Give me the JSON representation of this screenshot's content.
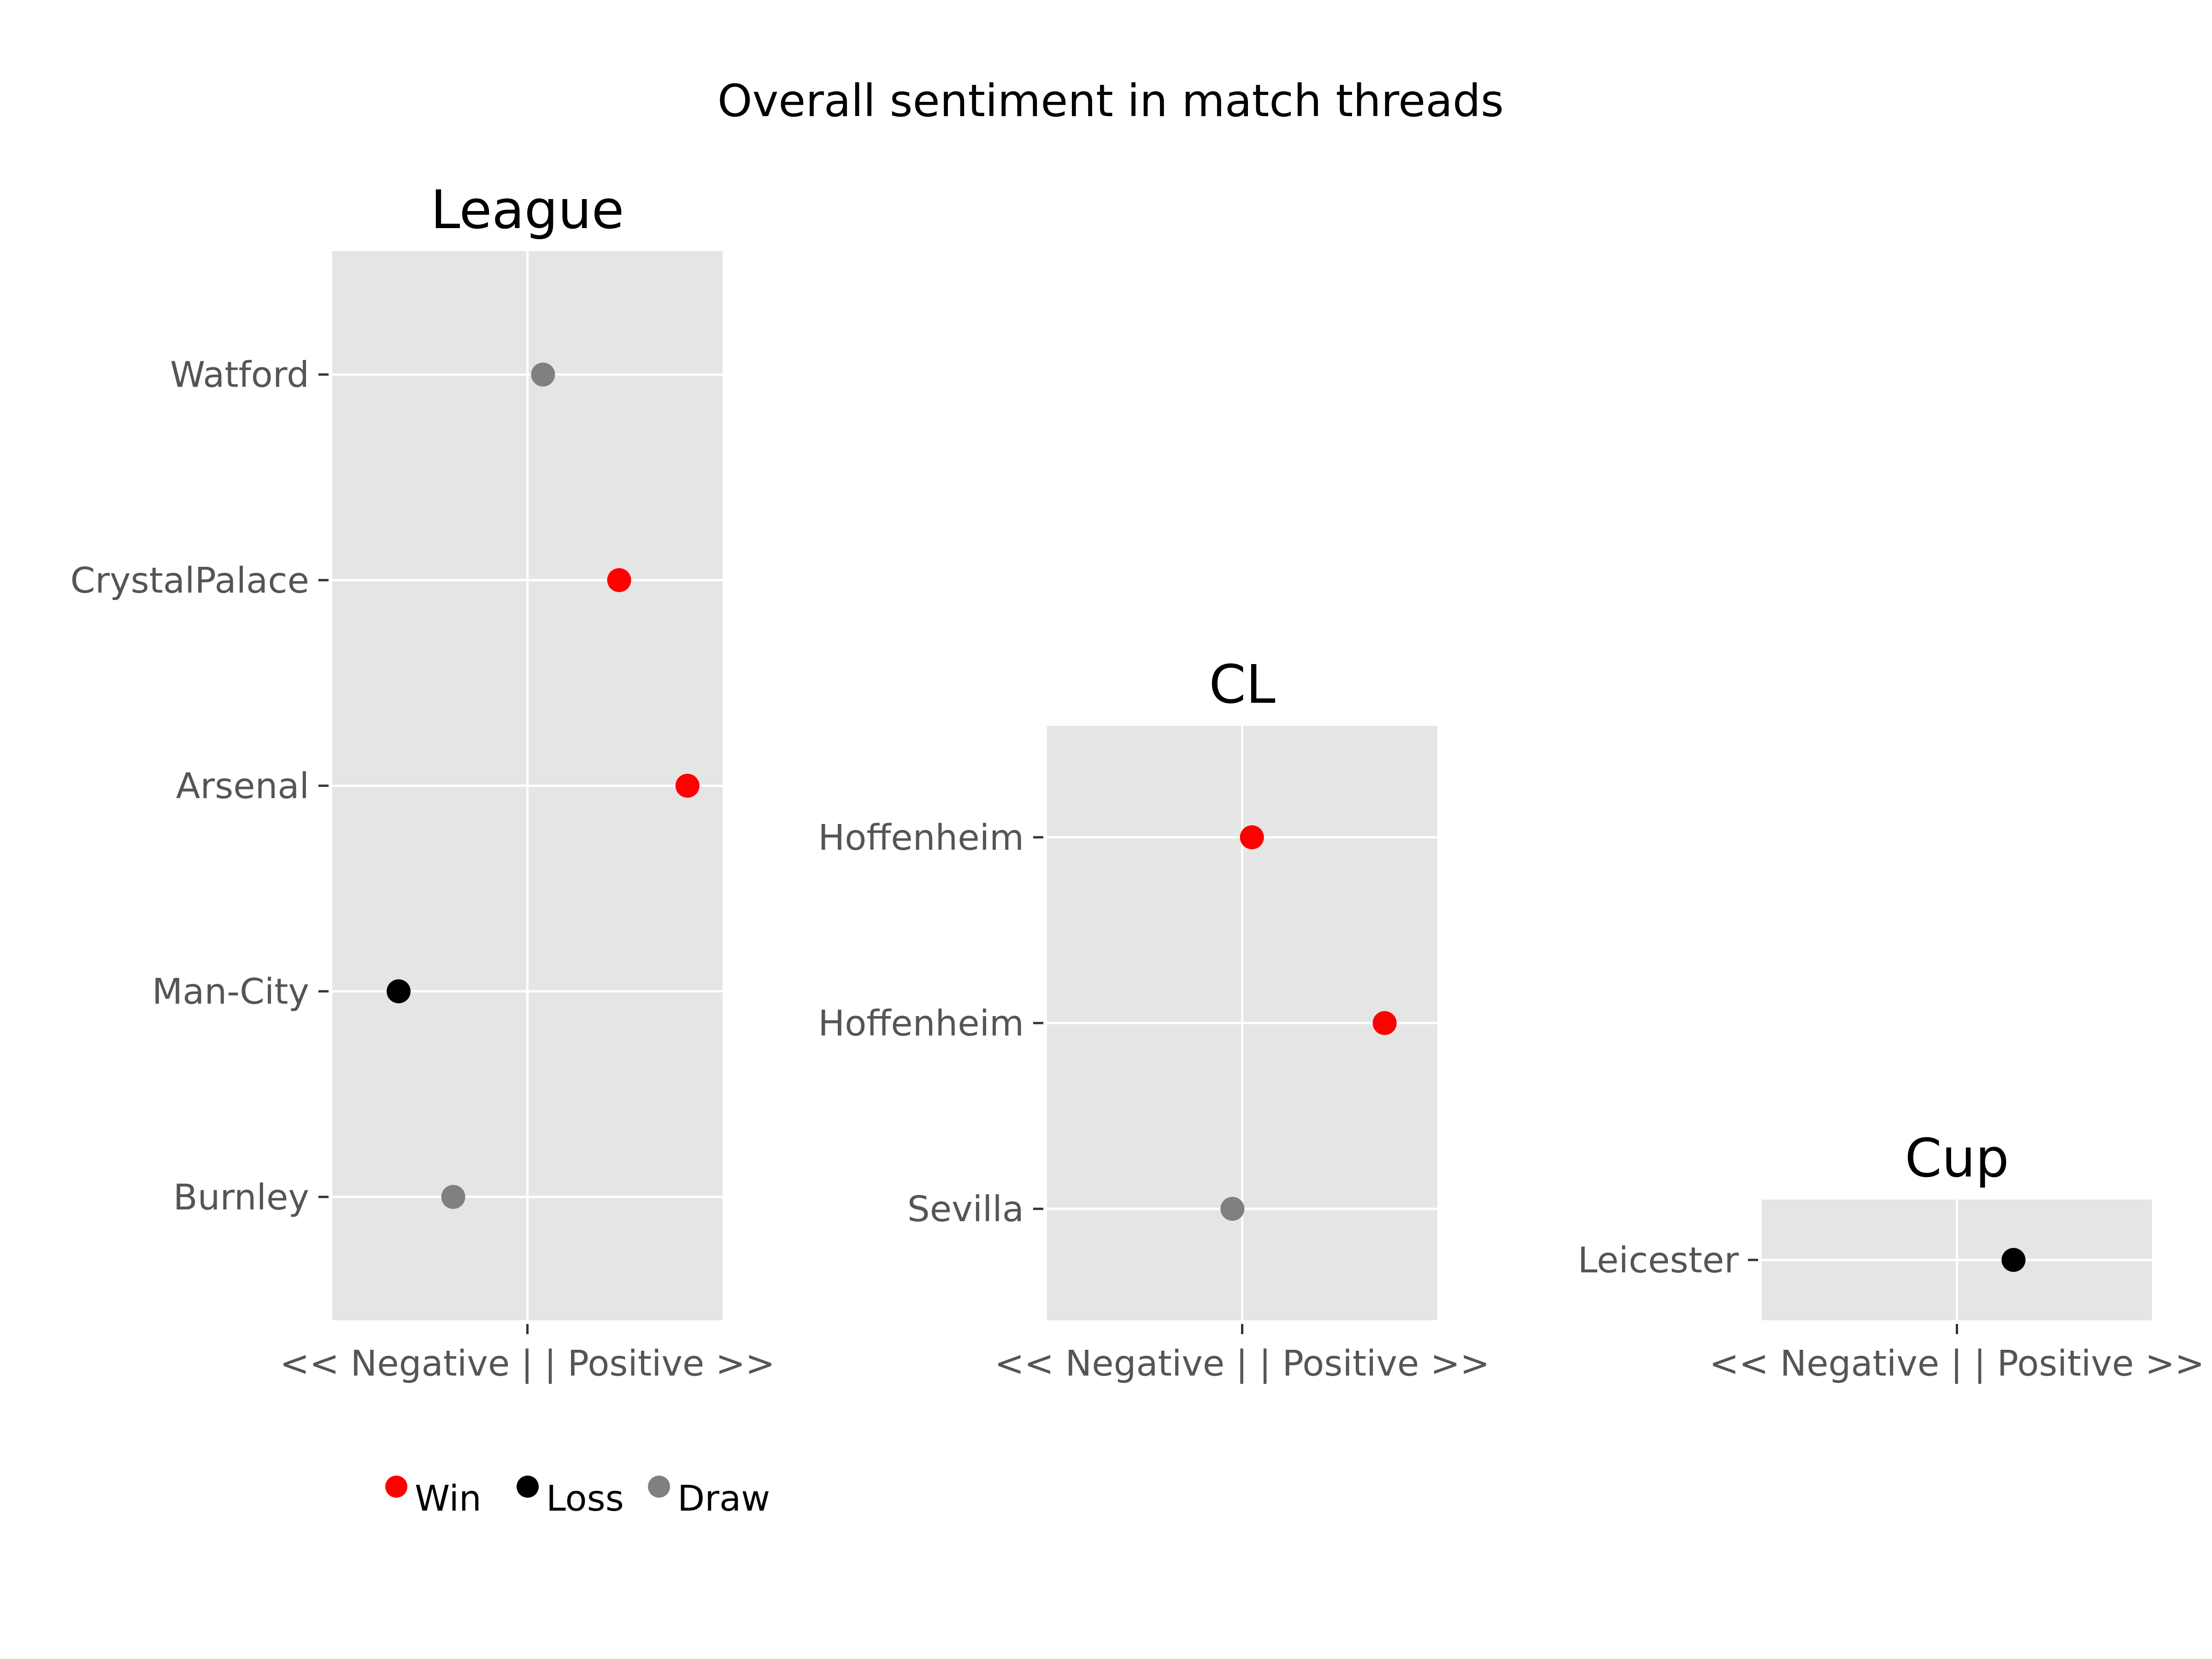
{
  "title": "Overall sentiment in match threads",
  "colors": {
    "Win": "#ff0000",
    "Loss": "#000000",
    "Draw": "#808080",
    "panel_bg": "#e5e5e5",
    "grid": "#ffffff"
  },
  "legend": [
    {
      "label": "Win",
      "color": "#ff0000"
    },
    {
      "label": "Loss",
      "color": "#000000"
    },
    {
      "label": "Draw",
      "color": "#808080"
    }
  ],
  "chart_data": [
    {
      "type": "scatter",
      "title": "League",
      "xlabel": "<< Negative | | Positive >>",
      "xlim": [
        -1,
        1
      ],
      "categories": [
        "Burnley",
        "Man-City",
        "Arsenal",
        "CrystalPalace",
        "Watford"
      ],
      "points": [
        {
          "team": "Watford",
          "value": 0.08,
          "result": "Draw"
        },
        {
          "team": "CrystalPalace",
          "value": 0.47,
          "result": "Win"
        },
        {
          "team": "Arsenal",
          "value": 0.82,
          "result": "Win"
        },
        {
          "team": "Man-City",
          "value": -0.66,
          "result": "Loss"
        },
        {
          "team": "Burnley",
          "value": -0.38,
          "result": "Draw"
        }
      ]
    },
    {
      "type": "scatter",
      "title": "CL",
      "xlabel": "<< Negative | | Positive >>",
      "xlim": [
        -1,
        1
      ],
      "categories": [
        "Sevilla",
        "Hoffenheim",
        "Hoffenheim"
      ],
      "points": [
        {
          "team": "Hoffenheim",
          "value": 0.05,
          "result": "Win"
        },
        {
          "team": "Hoffenheim",
          "value": 0.73,
          "result": "Win"
        },
        {
          "team": "Sevilla",
          "value": -0.05,
          "result": "Draw"
        }
      ]
    },
    {
      "type": "scatter",
      "title": "Cup",
      "xlabel": "<< Negative | | Positive >>",
      "xlim": [
        -1,
        1
      ],
      "categories": [
        "Leicester"
      ],
      "points": [
        {
          "team": "Leicester",
          "value": 0.29,
          "result": "Loss"
        }
      ]
    }
  ]
}
